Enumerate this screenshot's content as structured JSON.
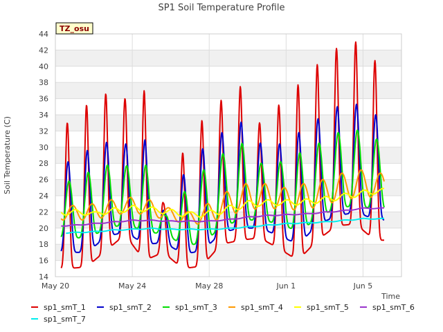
{
  "chart_data": {
    "type": "line",
    "title": "SP1 Soil Temperature Profile",
    "xlabel": "Time",
    "ylabel": "Soil Temperature (C)",
    "badge": "TZ_osu",
    "xlim": [
      0,
      18
    ],
    "ylim": [
      14,
      44
    ],
    "xticks": [
      {
        "value": 0,
        "label": "May 20"
      },
      {
        "value": 4,
        "label": "May 24"
      },
      {
        "value": 8,
        "label": "May 28"
      },
      {
        "value": 12,
        "label": "Jun 1"
      },
      {
        "value": 16,
        "label": "Jun 5"
      }
    ],
    "yticks": [
      14,
      16,
      18,
      20,
      22,
      24,
      26,
      28,
      30,
      32,
      34,
      36,
      38,
      40,
      42,
      44
    ],
    "legend_position": "bottom",
    "series": [
      {
        "name": "sp1_smT_1",
        "color": "#dd0000",
        "phase": 0.62,
        "sharp": 4.5,
        "daily_max": [
          33.0,
          35.2,
          36.6,
          36.0,
          37.0,
          23.0,
          29.3,
          33.3,
          35.8,
          37.5,
          33.0,
          35.2,
          37.7,
          40.2,
          42.2,
          43.0,
          40.7
        ],
        "daily_min": [
          15.0,
          15.2,
          17.2,
          19.2,
          16.0,
          17.0,
          15.0,
          15.3,
          18.0,
          18.5,
          18.8,
          17.5,
          16.0,
          18.5,
          20.3,
          20.5,
          18.5
        ]
      },
      {
        "name": "sp1_smT_2",
        "color": "#0000cc",
        "phase": 0.66,
        "sharp": 2.5,
        "daily_max": [
          28.2,
          29.6,
          30.6,
          30.4,
          30.9,
          22.0,
          26.6,
          29.8,
          31.8,
          33.1,
          30.5,
          30.4,
          31.8,
          33.5,
          35.0,
          35.3,
          34.0
        ],
        "daily_min": [
          17.0,
          17.0,
          19.0,
          19.5,
          18.0,
          18.2,
          16.8,
          17.2,
          19.5,
          20.0,
          20.0,
          19.0,
          18.0,
          20.5,
          21.5,
          22.0,
          21.0
        ]
      },
      {
        "name": "sp1_smT_3",
        "color": "#00dd00",
        "phase": 0.71,
        "sharp": 1.6,
        "daily_max": [
          25.8,
          26.9,
          27.8,
          27.7,
          27.8,
          21.5,
          24.5,
          27.2,
          29.2,
          30.5,
          28.0,
          28.2,
          29.3,
          30.5,
          31.8,
          32.1,
          31.0
        ],
        "daily_min": [
          18.8,
          18.8,
          20.0,
          20.5,
          19.5,
          19.3,
          17.8,
          18.2,
          20.3,
          21.0,
          21.0,
          20.5,
          19.5,
          21.5,
          22.5,
          22.8,
          22.3
        ]
      },
      {
        "name": "sp1_smT_4",
        "color": "#ff9900",
        "phase": 0.9,
        "sharp": 1.0,
        "daily_max": [
          22.8,
          23.0,
          23.5,
          23.8,
          23.5,
          22.5,
          22.0,
          23.0,
          24.5,
          25.5,
          25.5,
          25.0,
          25.5,
          26.0,
          26.8,
          27.2,
          26.8
        ],
        "daily_min": [
          21.0,
          21.0,
          21.5,
          22.0,
          21.5,
          21.0,
          20.5,
          20.5,
          21.5,
          22.2,
          22.5,
          22.3,
          22.2,
          22.8,
          23.5,
          23.8,
          23.8
        ]
      },
      {
        "name": "sp1_smT_5",
        "color": "#ffff00",
        "phase": 1.05,
        "sharp": 1.0,
        "daily_max": [
          22.3,
          22.0,
          22.5,
          22.8,
          22.6,
          22.3,
          22.0,
          22.2,
          22.8,
          23.4,
          23.5,
          23.5,
          23.6,
          23.9,
          24.3,
          24.7,
          24.9
        ],
        "daily_min": [
          21.6,
          21.6,
          21.8,
          22.1,
          22.0,
          21.6,
          21.3,
          21.4,
          22.0,
          22.6,
          22.8,
          22.8,
          22.9,
          23.2,
          23.6,
          24.0,
          24.4
        ]
      },
      {
        "name": "sp1_smT_6",
        "color": "#9933cc",
        "phase": 0.0,
        "sharp": 1.0,
        "daily_max": [
          20.3,
          20.4,
          20.6,
          20.8,
          21.0,
          21.0,
          20.9,
          20.9,
          20.9,
          21.1,
          21.4,
          21.6,
          21.7,
          21.8,
          22.0,
          22.2,
          22.5
        ],
        "daily_min": [
          20.2,
          20.3,
          20.5,
          20.7,
          20.9,
          20.9,
          20.8,
          20.8,
          20.8,
          21.0,
          21.3,
          21.5,
          21.6,
          21.7,
          21.9,
          22.1,
          22.4
        ]
      },
      {
        "name": "sp1_smT_7",
        "color": "#00eeee",
        "phase": 0.0,
        "sharp": 1.0,
        "daily_max": [
          19.4,
          19.5,
          19.6,
          19.8,
          19.9,
          20.0,
          19.9,
          19.9,
          19.9,
          20.0,
          20.2,
          20.4,
          20.6,
          20.7,
          20.8,
          21.0,
          21.2
        ],
        "daily_min": [
          19.3,
          19.4,
          19.5,
          19.7,
          19.8,
          19.9,
          19.8,
          19.8,
          19.8,
          19.9,
          20.1,
          20.3,
          20.5,
          20.6,
          20.7,
          20.9,
          21.1
        ]
      }
    ],
    "series_domain": [
      [
        0.3,
        17.1
      ],
      [
        0.3,
        17.1
      ],
      [
        0.3,
        17.1
      ],
      [
        0.3,
        17.1
      ],
      [
        0.3,
        17.1
      ],
      [
        0.3,
        17.1
      ],
      [
        0.55,
        17.1
      ]
    ]
  }
}
